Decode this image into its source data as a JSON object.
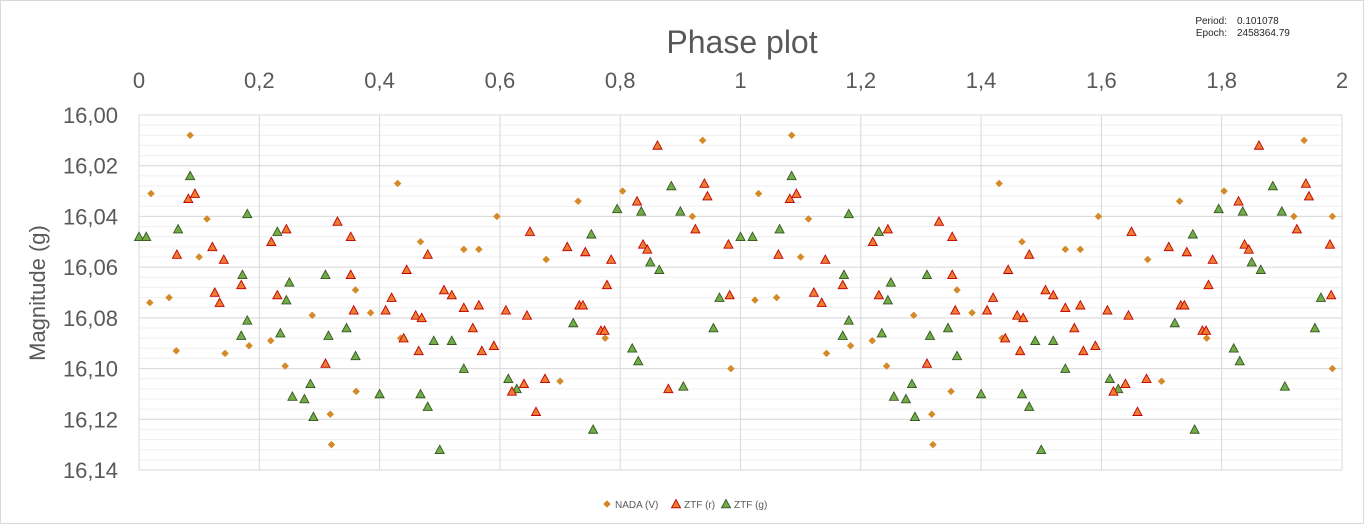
{
  "chart_data": {
    "type": "scatter",
    "title": "Phase plot",
    "xlabel": "",
    "ylabel": "Magnitude (g)",
    "xlim": [
      0,
      2
    ],
    "ylim": [
      16.14,
      16.0
    ],
    "y_inverted": true,
    "x_axis_position": "top",
    "grid": true,
    "minor_grid": true,
    "x_ticks": [
      "0",
      "0,2",
      "0,4",
      "0,6",
      "0,8",
      "1",
      "1,2",
      "1,4",
      "1,6",
      "1,8",
      "2"
    ],
    "y_ticks": [
      "16,00",
      "16,02",
      "16,04",
      "16,06",
      "16,08",
      "16,10",
      "16,12",
      "16,14"
    ],
    "info": {
      "period_label": "Period:",
      "period_value": "0.101078",
      "epoch_label": "Epoch:",
      "epoch_value": "2458364.79"
    },
    "legend_position": "bottom",
    "series": [
      {
        "name": "NADA (V)",
        "marker": "diamond",
        "color": "#ED7D31",
        "fill": "#D58A28",
        "points": [
          [
            0.02,
            16.031
          ],
          [
            0.018,
            16.074
          ],
          [
            0.05,
            16.072
          ],
          [
            0.062,
            16.093
          ],
          [
            0.085,
            16.008
          ],
          [
            0.1,
            16.056
          ],
          [
            0.113,
            16.041
          ],
          [
            0.143,
            16.094
          ],
          [
            0.183,
            16.091
          ],
          [
            0.219,
            16.089
          ],
          [
            0.243,
            16.099
          ],
          [
            0.288,
            16.079
          ],
          [
            0.318,
            16.118
          ],
          [
            0.32,
            16.13
          ],
          [
            0.36,
            16.069
          ],
          [
            0.361,
            16.109
          ],
          [
            0.385,
            16.078
          ],
          [
            0.43,
            16.027
          ],
          [
            0.435,
            16.088
          ],
          [
            0.468,
            16.05
          ],
          [
            0.54,
            16.053
          ],
          [
            0.565,
            16.053
          ],
          [
            0.595,
            16.04
          ],
          [
            0.677,
            16.057
          ],
          [
            0.7,
            16.105
          ],
          [
            0.73,
            16.034
          ],
          [
            0.775,
            16.088
          ],
          [
            0.804,
            16.03
          ],
          [
            0.937,
            16.01
          ],
          [
            0.92,
            16.04
          ],
          [
            0.984,
            16.1
          ],
          [
            1.024,
            16.073
          ],
          [
            1.03,
            16.031
          ],
          [
            1.06,
            16.072
          ],
          [
            1.085,
            16.008
          ],
          [
            1.1,
            16.056
          ],
          [
            1.113,
            16.041
          ],
          [
            1.143,
            16.094
          ],
          [
            1.183,
            16.091
          ],
          [
            1.219,
            16.089
          ],
          [
            1.243,
            16.099
          ],
          [
            1.288,
            16.079
          ],
          [
            1.318,
            16.118
          ],
          [
            1.32,
            16.13
          ],
          [
            1.36,
            16.069
          ],
          [
            1.35,
            16.109
          ],
          [
            1.385,
            16.078
          ],
          [
            1.43,
            16.027
          ],
          [
            1.435,
            16.088
          ],
          [
            1.468,
            16.05
          ],
          [
            1.54,
            16.053
          ],
          [
            1.565,
            16.053
          ],
          [
            1.595,
            16.04
          ],
          [
            1.677,
            16.057
          ],
          [
            1.7,
            16.105
          ],
          [
            1.73,
            16.034
          ],
          [
            1.775,
            16.088
          ],
          [
            1.804,
            16.03
          ],
          [
            1.937,
            16.01
          ],
          [
            1.92,
            16.04
          ],
          [
            1.984,
            16.1
          ],
          [
            1.984,
            16.04
          ]
        ]
      },
      {
        "name": "ZTF (r)",
        "marker": "triangle",
        "color": "#C00000",
        "fill": "#ED7D31",
        "points": [
          [
            0.063,
            16.055
          ],
          [
            0.082,
            16.033
          ],
          [
            0.093,
            16.031
          ],
          [
            0.122,
            16.052
          ],
          [
            0.126,
            16.07
          ],
          [
            0.134,
            16.074
          ],
          [
            0.141,
            16.057
          ],
          [
            0.17,
            16.067
          ],
          [
            0.22,
            16.05
          ],
          [
            0.23,
            16.071
          ],
          [
            0.245,
            16.045
          ],
          [
            0.31,
            16.098
          ],
          [
            0.33,
            16.042
          ],
          [
            0.352,
            16.048
          ],
          [
            0.357,
            16.077
          ],
          [
            0.352,
            16.063
          ],
          [
            0.41,
            16.077
          ],
          [
            0.42,
            16.072
          ],
          [
            0.44,
            16.088
          ],
          [
            0.445,
            16.061
          ],
          [
            0.46,
            16.079
          ],
          [
            0.465,
            16.093
          ],
          [
            0.47,
            16.08
          ],
          [
            0.48,
            16.055
          ],
          [
            0.507,
            16.069
          ],
          [
            0.52,
            16.071
          ],
          [
            0.54,
            16.076
          ],
          [
            0.555,
            16.084
          ],
          [
            0.565,
            16.075
          ],
          [
            0.57,
            16.093
          ],
          [
            0.59,
            16.091
          ],
          [
            0.61,
            16.077
          ],
          [
            0.62,
            16.109
          ],
          [
            0.64,
            16.106
          ],
          [
            0.645,
            16.079
          ],
          [
            0.65,
            16.046
          ],
          [
            0.66,
            16.117
          ],
          [
            0.675,
            16.104
          ],
          [
            0.712,
            16.052
          ],
          [
            0.732,
            16.075
          ],
          [
            0.738,
            16.075
          ],
          [
            0.742,
            16.054
          ],
          [
            0.768,
            16.085
          ],
          [
            0.774,
            16.085
          ],
          [
            0.778,
            16.067
          ],
          [
            0.785,
            16.057
          ],
          [
            0.828,
            16.034
          ],
          [
            0.838,
            16.051
          ],
          [
            0.845,
            16.053
          ],
          [
            0.862,
            16.012
          ],
          [
            0.88,
            16.108
          ],
          [
            0.925,
            16.045
          ],
          [
            0.94,
            16.027
          ],
          [
            0.945,
            16.032
          ],
          [
            0.98,
            16.051
          ],
          [
            0.982,
            16.071
          ],
          [
            1.063,
            16.055
          ],
          [
            1.082,
            16.033
          ],
          [
            1.093,
            16.031
          ],
          [
            1.122,
            16.07
          ],
          [
            1.135,
            16.074
          ],
          [
            1.141,
            16.057
          ],
          [
            1.17,
            16.067
          ],
          [
            1.22,
            16.05
          ],
          [
            1.23,
            16.071
          ],
          [
            1.245,
            16.045
          ],
          [
            1.31,
            16.098
          ],
          [
            1.33,
            16.042
          ],
          [
            1.352,
            16.048
          ],
          [
            1.357,
            16.077
          ],
          [
            1.352,
            16.063
          ],
          [
            1.41,
            16.077
          ],
          [
            1.42,
            16.072
          ],
          [
            1.44,
            16.088
          ],
          [
            1.445,
            16.061
          ],
          [
            1.46,
            16.079
          ],
          [
            1.465,
            16.093
          ],
          [
            1.47,
            16.08
          ],
          [
            1.48,
            16.055
          ],
          [
            1.507,
            16.069
          ],
          [
            1.52,
            16.071
          ],
          [
            1.54,
            16.076
          ],
          [
            1.555,
            16.084
          ],
          [
            1.565,
            16.075
          ],
          [
            1.57,
            16.093
          ],
          [
            1.59,
            16.091
          ],
          [
            1.61,
            16.077
          ],
          [
            1.62,
            16.109
          ],
          [
            1.64,
            16.106
          ],
          [
            1.645,
            16.079
          ],
          [
            1.65,
            16.046
          ],
          [
            1.66,
            16.117
          ],
          [
            1.675,
            16.104
          ],
          [
            1.712,
            16.052
          ],
          [
            1.732,
            16.075
          ],
          [
            1.738,
            16.075
          ],
          [
            1.742,
            16.054
          ],
          [
            1.768,
            16.085
          ],
          [
            1.774,
            16.085
          ],
          [
            1.778,
            16.067
          ],
          [
            1.785,
            16.057
          ],
          [
            1.828,
            16.034
          ],
          [
            1.838,
            16.051
          ],
          [
            1.845,
            16.053
          ],
          [
            1.862,
            16.012
          ],
          [
            1.925,
            16.045
          ],
          [
            1.94,
            16.027
          ],
          [
            1.945,
            16.032
          ],
          [
            1.98,
            16.051
          ],
          [
            1.982,
            16.071
          ]
        ]
      },
      {
        "name": "ZTF (g)",
        "marker": "triangle",
        "color": "#375623",
        "fill": "#70AD47",
        "points": [
          [
            0.0,
            16.048
          ],
          [
            0.012,
            16.048
          ],
          [
            0.065,
            16.045
          ],
          [
            0.085,
            16.024
          ],
          [
            0.17,
            16.087
          ],
          [
            0.172,
            16.063
          ],
          [
            0.18,
            16.039
          ],
          [
            0.18,
            16.081
          ],
          [
            0.23,
            16.046
          ],
          [
            0.235,
            16.086
          ],
          [
            0.245,
            16.073
          ],
          [
            0.25,
            16.066
          ],
          [
            0.255,
            16.111
          ],
          [
            0.275,
            16.112
          ],
          [
            0.285,
            16.106
          ],
          [
            0.29,
            16.119
          ],
          [
            0.31,
            16.063
          ],
          [
            0.315,
            16.087
          ],
          [
            0.345,
            16.084
          ],
          [
            0.36,
            16.095
          ],
          [
            0.4,
            16.11
          ],
          [
            0.468,
            16.11
          ],
          [
            0.48,
            16.115
          ],
          [
            0.49,
            16.089
          ],
          [
            0.5,
            16.132
          ],
          [
            0.52,
            16.089
          ],
          [
            0.54,
            16.1
          ],
          [
            0.614,
            16.104
          ],
          [
            0.628,
            16.108
          ],
          [
            0.722,
            16.082
          ],
          [
            0.752,
            16.047
          ],
          [
            0.755,
            16.124
          ],
          [
            0.795,
            16.037
          ],
          [
            0.82,
            16.092
          ],
          [
            0.83,
            16.097
          ],
          [
            0.835,
            16.038
          ],
          [
            0.85,
            16.058
          ],
          [
            0.865,
            16.061
          ],
          [
            0.885,
            16.028
          ],
          [
            0.9,
            16.038
          ],
          [
            0.905,
            16.107
          ],
          [
            0.955,
            16.084
          ],
          [
            0.965,
            16.072
          ],
          [
            1.0,
            16.048
          ],
          [
            1.02,
            16.048
          ],
          [
            1.065,
            16.045
          ],
          [
            1.085,
            16.024
          ],
          [
            1.17,
            16.087
          ],
          [
            1.172,
            16.063
          ],
          [
            1.18,
            16.039
          ],
          [
            1.18,
            16.081
          ],
          [
            1.23,
            16.046
          ],
          [
            1.235,
            16.086
          ],
          [
            1.245,
            16.073
          ],
          [
            1.25,
            16.066
          ],
          [
            1.255,
            16.111
          ],
          [
            1.275,
            16.112
          ],
          [
            1.285,
            16.106
          ],
          [
            1.29,
            16.119
          ],
          [
            1.31,
            16.063
          ],
          [
            1.315,
            16.087
          ],
          [
            1.345,
            16.084
          ],
          [
            1.36,
            16.095
          ],
          [
            1.4,
            16.11
          ],
          [
            1.468,
            16.11
          ],
          [
            1.48,
            16.115
          ],
          [
            1.49,
            16.089
          ],
          [
            1.5,
            16.132
          ],
          [
            1.52,
            16.089
          ],
          [
            1.54,
            16.1
          ],
          [
            1.614,
            16.104
          ],
          [
            1.628,
            16.108
          ],
          [
            1.722,
            16.082
          ],
          [
            1.752,
            16.047
          ],
          [
            1.755,
            16.124
          ],
          [
            1.795,
            16.037
          ],
          [
            1.82,
            16.092
          ],
          [
            1.83,
            16.097
          ],
          [
            1.835,
            16.038
          ],
          [
            1.85,
            16.058
          ],
          [
            1.865,
            16.061
          ],
          [
            1.885,
            16.028
          ],
          [
            1.9,
            16.038
          ],
          [
            1.905,
            16.107
          ],
          [
            1.955,
            16.084
          ],
          [
            1.965,
            16.072
          ]
        ]
      }
    ]
  }
}
